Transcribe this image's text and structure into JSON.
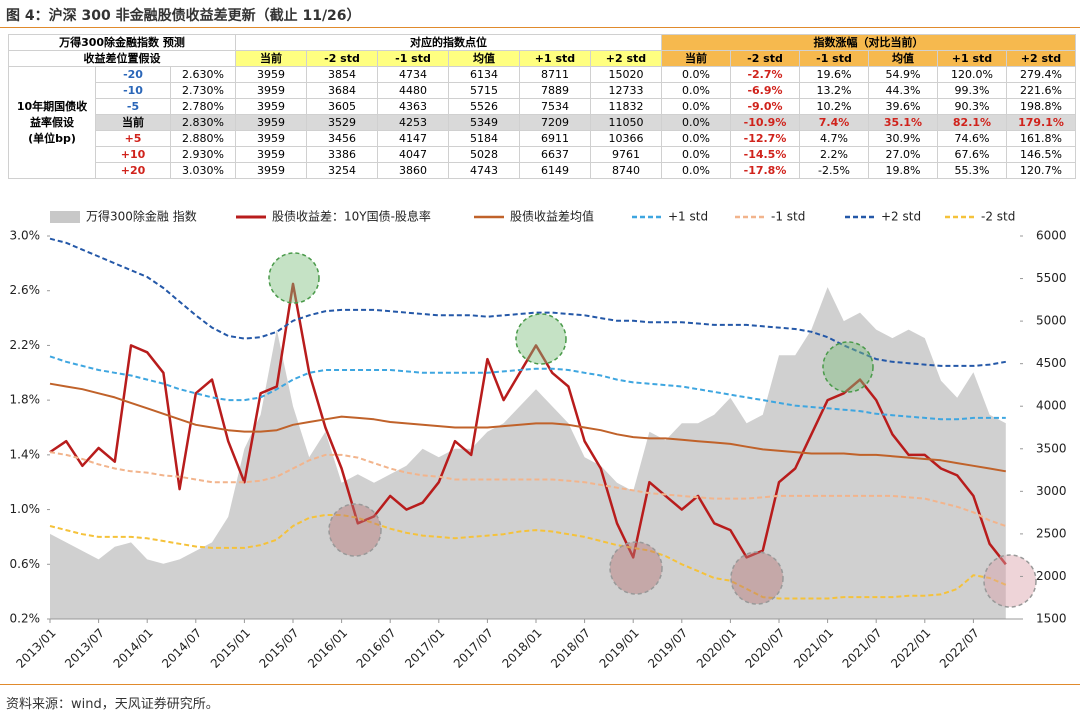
{
  "title": "图 4：沪深 300 非金融股债收益差更新（截止 11/26）",
  "source": "资料来源：wind，天风证券研究所。",
  "table": {
    "corner": [
      "万得300除金融指数 预测",
      "收益差位置假设"
    ],
    "group_headers": [
      "对应的指数点位",
      "指数涨幅（对比当前）"
    ],
    "columns_points": [
      "当前",
      "-2 std",
      "-1 std",
      "均值",
      "+1 std",
      "+2 std"
    ],
    "columns_change": [
      "当前",
      "-2 std",
      "-1 std",
      "均值",
      "+1 std",
      "+2 std"
    ],
    "row_group": [
      "10年期国债收",
      "益率假设",
      "(单位bp)"
    ],
    "rows": [
      [
        "-20",
        "2.630%",
        "3959",
        "3854",
        "4734",
        "6134",
        "8711",
        "15020",
        "0.0%",
        "-2.7%",
        "19.6%",
        "54.9%",
        "120.0%",
        "279.4%"
      ],
      [
        "-10",
        "2.730%",
        "3959",
        "3684",
        "4480",
        "5715",
        "7889",
        "12733",
        "0.0%",
        "-6.9%",
        "13.2%",
        "44.3%",
        "99.3%",
        "221.6%"
      ],
      [
        "-5",
        "2.780%",
        "3959",
        "3605",
        "4363",
        "5526",
        "7534",
        "11832",
        "0.0%",
        "-9.0%",
        "10.2%",
        "39.6%",
        "90.3%",
        "198.8%"
      ],
      [
        "当前",
        "2.830%",
        "3959",
        "3529",
        "4253",
        "5349",
        "7209",
        "11050",
        "0.0%",
        "-10.9%",
        "7.4%",
        "35.1%",
        "82.1%",
        "179.1%"
      ],
      [
        "+5",
        "2.880%",
        "3959",
        "3456",
        "4147",
        "5184",
        "6911",
        "10366",
        "0.0%",
        "-12.7%",
        "4.7%",
        "30.9%",
        "74.6%",
        "161.8%"
      ],
      [
        "+10",
        "2.930%",
        "3959",
        "3386",
        "4047",
        "5028",
        "6637",
        "9761",
        "0.0%",
        "-14.5%",
        "2.2%",
        "27.0%",
        "67.6%",
        "146.5%"
      ],
      [
        "+20",
        "3.030%",
        "3959",
        "3254",
        "3860",
        "4743",
        "6149",
        "8740",
        "0.0%",
        "-17.8%",
        "-2.5%",
        "19.8%",
        "55.3%",
        "120.7%"
      ]
    ]
  },
  "chart_data": {
    "type": "line",
    "x": [
      "2013/01",
      "2013/03",
      "2013/05",
      "2013/07",
      "2013/09",
      "2013/11",
      "2014/01",
      "2014/03",
      "2014/05",
      "2014/07",
      "2014/09",
      "2014/11",
      "2015/01",
      "2015/03",
      "2015/05",
      "2015/07",
      "2015/09",
      "2015/11",
      "2016/01",
      "2016/03",
      "2016/05",
      "2016/07",
      "2016/09",
      "2016/11",
      "2017/01",
      "2017/03",
      "2017/05",
      "2017/07",
      "2017/09",
      "2017/11",
      "2018/01",
      "2018/03",
      "2018/05",
      "2018/07",
      "2018/09",
      "2018/11",
      "2019/01",
      "2019/03",
      "2019/05",
      "2019/07",
      "2019/09",
      "2019/11",
      "2020/01",
      "2020/03",
      "2020/05",
      "2020/07",
      "2020/09",
      "2020/11",
      "2021/01",
      "2021/03",
      "2021/05",
      "2021/07",
      "2021/09",
      "2021/11",
      "2022/01",
      "2022/03",
      "2022/05",
      "2022/07",
      "2022/09",
      "2022/11"
    ],
    "xticks": [
      "2013/01",
      "2013/07",
      "2014/01",
      "2014/07",
      "2015/01",
      "2015/07",
      "2016/01",
      "2016/07",
      "2017/01",
      "2017/07",
      "2018/01",
      "2018/07",
      "2019/01",
      "2019/07",
      "2020/01",
      "2020/07",
      "2021/01",
      "2021/07",
      "2022/01",
      "2022/07"
    ],
    "ylim": [
      0.2,
      3.0
    ],
    "yticks": [
      {
        "value": 0.2,
        "label": "0.2%"
      },
      {
        "value": 0.6,
        "label": "0.6%"
      },
      {
        "value": 1.0,
        "label": "1.0%"
      },
      {
        "value": 1.4,
        "label": "1.4%"
      },
      {
        "value": 1.8,
        "label": "1.8%"
      },
      {
        "value": 2.2,
        "label": "2.2%"
      },
      {
        "value": 2.6,
        "label": "2.6%"
      },
      {
        "value": 3.0,
        "label": "3.0%"
      }
    ],
    "y2lim": [
      1500,
      6000
    ],
    "y2ticks": [
      1500,
      2000,
      2500,
      3000,
      3500,
      4000,
      4500,
      5000,
      5500,
      6000
    ],
    "series": [
      {
        "name": "万得300除金融 指数",
        "type": "area",
        "axis": "y2",
        "color": "#c8c8c8",
        "values": [
          2500,
          2400,
          2300,
          2200,
          2350,
          2400,
          2200,
          2150,
          2200,
          2300,
          2400,
          2700,
          3500,
          3900,
          4900,
          4000,
          3400,
          3700,
          3100,
          3200,
          3100,
          3200,
          3300,
          3500,
          3400,
          3500,
          3500,
          3700,
          3800,
          4000,
          4200,
          4000,
          3800,
          3400,
          3300,
          3100,
          3000,
          3700,
          3600,
          3800,
          3800,
          3900,
          4100,
          3800,
          3900,
          4600,
          4600,
          4900,
          5400,
          5000,
          5100,
          4900,
          4800,
          4900,
          4800,
          4300,
          4100,
          4400,
          3900,
          3800
        ]
      },
      {
        "name": "股债收益差：10Y国债-股息率",
        "type": "line",
        "color": "#b81c1c",
        "width": 2.5,
        "values": [
          1.42,
          1.5,
          1.32,
          1.45,
          1.35,
          2.2,
          2.15,
          2.0,
          1.15,
          1.85,
          1.95,
          1.5,
          1.2,
          1.85,
          1.9,
          2.65,
          2.0,
          1.6,
          1.3,
          0.9,
          0.95,
          1.1,
          1.0,
          1.05,
          1.2,
          1.5,
          1.4,
          2.1,
          1.8,
          2.0,
          2.2,
          2.0,
          1.9,
          1.5,
          1.3,
          0.9,
          0.65,
          1.2,
          1.1,
          1.0,
          1.1,
          0.9,
          0.85,
          0.65,
          0.7,
          1.2,
          1.3,
          1.55,
          1.8,
          1.85,
          1.95,
          1.8,
          1.55,
          1.4,
          1.4,
          1.3,
          1.25,
          1.1,
          0.75,
          0.6
        ]
      },
      {
        "name": "股债收益差均值",
        "type": "line",
        "color": "#c0622a",
        "width": 2,
        "values": [
          1.92,
          1.9,
          1.88,
          1.85,
          1.82,
          1.78,
          1.74,
          1.7,
          1.66,
          1.62,
          1.6,
          1.58,
          1.57,
          1.57,
          1.58,
          1.62,
          1.64,
          1.66,
          1.68,
          1.67,
          1.66,
          1.64,
          1.63,
          1.62,
          1.61,
          1.6,
          1.6,
          1.6,
          1.61,
          1.62,
          1.63,
          1.63,
          1.62,
          1.6,
          1.58,
          1.55,
          1.53,
          1.52,
          1.52,
          1.51,
          1.5,
          1.49,
          1.48,
          1.46,
          1.44,
          1.43,
          1.42,
          1.41,
          1.41,
          1.41,
          1.4,
          1.4,
          1.39,
          1.38,
          1.37,
          1.36,
          1.34,
          1.32,
          1.3,
          1.28
        ]
      },
      {
        "name": "+1 std",
        "type": "line",
        "dashed": true,
        "color": "#3ea6e0",
        "width": 2,
        "values": [
          2.12,
          2.08,
          2.05,
          2.02,
          2.0,
          1.98,
          1.95,
          1.92,
          1.88,
          1.85,
          1.82,
          1.8,
          1.8,
          1.82,
          1.88,
          1.95,
          2.0,
          2.02,
          2.02,
          2.02,
          2.02,
          2.02,
          2.01,
          2.0,
          2.0,
          2.0,
          2.0,
          2.0,
          2.01,
          2.02,
          2.03,
          2.03,
          2.02,
          2.0,
          1.98,
          1.95,
          1.93,
          1.92,
          1.91,
          1.9,
          1.88,
          1.86,
          1.84,
          1.82,
          1.8,
          1.78,
          1.76,
          1.75,
          1.74,
          1.73,
          1.72,
          1.7,
          1.69,
          1.68,
          1.67,
          1.66,
          1.66,
          1.67,
          1.67,
          1.67
        ]
      },
      {
        "name": "-1 std",
        "type": "line",
        "dashed": true,
        "color": "#f2b48c",
        "width": 2,
        "values": [
          1.42,
          1.4,
          1.37,
          1.33,
          1.3,
          1.28,
          1.27,
          1.25,
          1.24,
          1.22,
          1.2,
          1.2,
          1.2,
          1.21,
          1.24,
          1.3,
          1.36,
          1.4,
          1.4,
          1.38,
          1.34,
          1.3,
          1.27,
          1.25,
          1.24,
          1.22,
          1.22,
          1.22,
          1.22,
          1.22,
          1.22,
          1.22,
          1.21,
          1.2,
          1.18,
          1.16,
          1.14,
          1.12,
          1.11,
          1.1,
          1.09,
          1.08,
          1.08,
          1.08,
          1.09,
          1.1,
          1.1,
          1.1,
          1.1,
          1.1,
          1.1,
          1.1,
          1.1,
          1.09,
          1.08,
          1.05,
          1.02,
          0.98,
          0.92,
          0.88
        ]
      },
      {
        "name": "+2 std",
        "type": "line",
        "dashed": true,
        "color": "#2458a8",
        "width": 2,
        "values": [
          2.98,
          2.95,
          2.9,
          2.85,
          2.8,
          2.75,
          2.7,
          2.62,
          2.52,
          2.42,
          2.33,
          2.27,
          2.25,
          2.26,
          2.3,
          2.38,
          2.42,
          2.45,
          2.46,
          2.46,
          2.46,
          2.45,
          2.44,
          2.43,
          2.42,
          2.42,
          2.42,
          2.41,
          2.42,
          2.43,
          2.44,
          2.44,
          2.43,
          2.42,
          2.4,
          2.38,
          2.38,
          2.37,
          2.37,
          2.37,
          2.36,
          2.35,
          2.35,
          2.35,
          2.34,
          2.33,
          2.32,
          2.3,
          2.26,
          2.2,
          2.15,
          2.1,
          2.08,
          2.07,
          2.06,
          2.05,
          2.05,
          2.05,
          2.06,
          2.08
        ]
      },
      {
        "name": "-2 std",
        "type": "line",
        "dashed": true,
        "color": "#f5c23a",
        "width": 2,
        "values": [
          0.88,
          0.85,
          0.82,
          0.8,
          0.8,
          0.8,
          0.79,
          0.77,
          0.75,
          0.73,
          0.72,
          0.72,
          0.72,
          0.74,
          0.78,
          0.88,
          0.94,
          0.96,
          0.96,
          0.94,
          0.9,
          0.86,
          0.83,
          0.81,
          0.8,
          0.79,
          0.8,
          0.81,
          0.82,
          0.84,
          0.85,
          0.84,
          0.82,
          0.8,
          0.77,
          0.74,
          0.72,
          0.7,
          0.66,
          0.6,
          0.55,
          0.5,
          0.48,
          0.42,
          0.36,
          0.35,
          0.35,
          0.35,
          0.35,
          0.36,
          0.36,
          0.36,
          0.36,
          0.37,
          0.37,
          0.38,
          0.42,
          0.52,
          0.5,
          0.45
        ]
      }
    ]
  }
}
